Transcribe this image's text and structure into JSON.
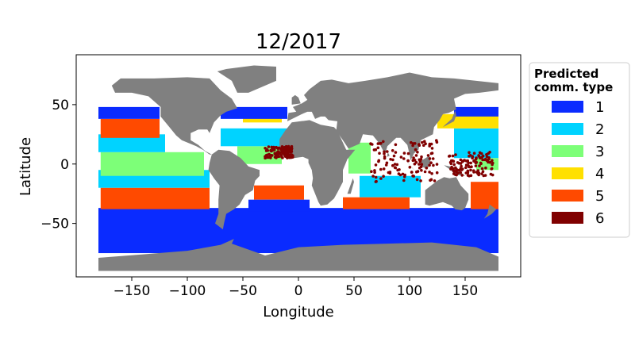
{
  "chart_data": {
    "type": "scatter",
    "title": "12/2017",
    "xlabel": "Longitude",
    "ylabel": "Latitude",
    "xlim": [
      -200,
      200
    ],
    "ylim": [
      -95,
      92
    ],
    "xticks": [
      -150,
      -100,
      -50,
      0,
      50,
      100,
      150
    ],
    "xtick_labels": [
      "−150",
      "−100",
      "−50",
      "0",
      "50",
      "100",
      "150"
    ],
    "yticks": [
      -50,
      0,
      50
    ],
    "ytick_labels": [
      "−50",
      "0",
      "50"
    ],
    "grid": false,
    "legend_position": "outside-right",
    "legend": {
      "title": "Predicted\ncomm. type",
      "entries": [
        {
          "label": "1",
          "color": "#0a2bff"
        },
        {
          "label": "2",
          "color": "#00d3ff"
        },
        {
          "label": "3",
          "color": "#7dff78"
        },
        {
          "label": "4",
          "color": "#ffe000"
        },
        {
          "label": "5",
          "color": "#ff4a00"
        },
        {
          "label": "6",
          "color": "#800000"
        }
      ]
    },
    "land_color": "#808080",
    "zones": [
      {
        "type": "1",
        "lon": [
          -180,
          180
        ],
        "lat": [
          -75,
          -37
        ]
      },
      {
        "type": "5",
        "lon": [
          -178,
          -80
        ],
        "lat": [
          -38,
          -20
        ]
      },
      {
        "type": "2",
        "lon": [
          -180,
          -80
        ],
        "lat": [
          -20,
          -5
        ]
      },
      {
        "type": "3",
        "lon": [
          -178,
          -85
        ],
        "lat": [
          -10,
          10
        ]
      },
      {
        "type": "2",
        "lon": [
          -180,
          -120
        ],
        "lat": [
          10,
          25
        ]
      },
      {
        "type": "5",
        "lon": [
          -178,
          -125
        ],
        "lat": [
          22,
          38
        ]
      },
      {
        "type": "1",
        "lon": [
          -180,
          -125
        ],
        "lat": [
          38,
          48
        ]
      },
      {
        "type": "3",
        "lon": [
          -55,
          -15
        ],
        "lat": [
          0,
          15
        ]
      },
      {
        "type": "2",
        "lon": [
          -70,
          -10
        ],
        "lat": [
          15,
          30
        ]
      },
      {
        "type": "5",
        "lon": [
          -40,
          5
        ],
        "lat": [
          -30,
          -18
        ]
      },
      {
        "type": "1",
        "lon": [
          -45,
          10
        ],
        "lat": [
          -40,
          -30
        ]
      },
      {
        "type": "4",
        "lon": [
          -50,
          -15
        ],
        "lat": [
          35,
          45
        ]
      },
      {
        "type": "1",
        "lon": [
          -70,
          -10
        ],
        "lat": [
          38,
          48
        ]
      },
      {
        "type": "3",
        "lon": [
          45,
          65
        ],
        "lat": [
          -8,
          18
        ]
      },
      {
        "type": "2",
        "lon": [
          55,
          110
        ],
        "lat": [
          -28,
          -10
        ]
      },
      {
        "type": "5",
        "lon": [
          40,
          100
        ],
        "lat": [
          -38,
          -28
        ]
      },
      {
        "type": "2",
        "lon": [
          140,
          180
        ],
        "lat": [
          5,
          30
        ]
      },
      {
        "type": "4",
        "lon": [
          125,
          180
        ],
        "lat": [
          30,
          42
        ]
      },
      {
        "type": "1",
        "lon": [
          140,
          180
        ],
        "lat": [
          40,
          48
        ]
      },
      {
        "type": "5",
        "lon": [
          155,
          180
        ],
        "lat": [
          -38,
          -15
        ]
      },
      {
        "type": "3",
        "lon": [
          160,
          180
        ],
        "lat": [
          -5,
          5
        ]
      },
      {
        "type": "6",
        "lon": [
          65,
          125
        ],
        "lat": [
          -15,
          20
        ]
      },
      {
        "type": "6",
        "lon": [
          -30,
          -5
        ],
        "lat": [
          5,
          15
        ]
      },
      {
        "type": "6",
        "lon": [
          135,
          175
        ],
        "lat": [
          -10,
          10
        ]
      }
    ]
  }
}
